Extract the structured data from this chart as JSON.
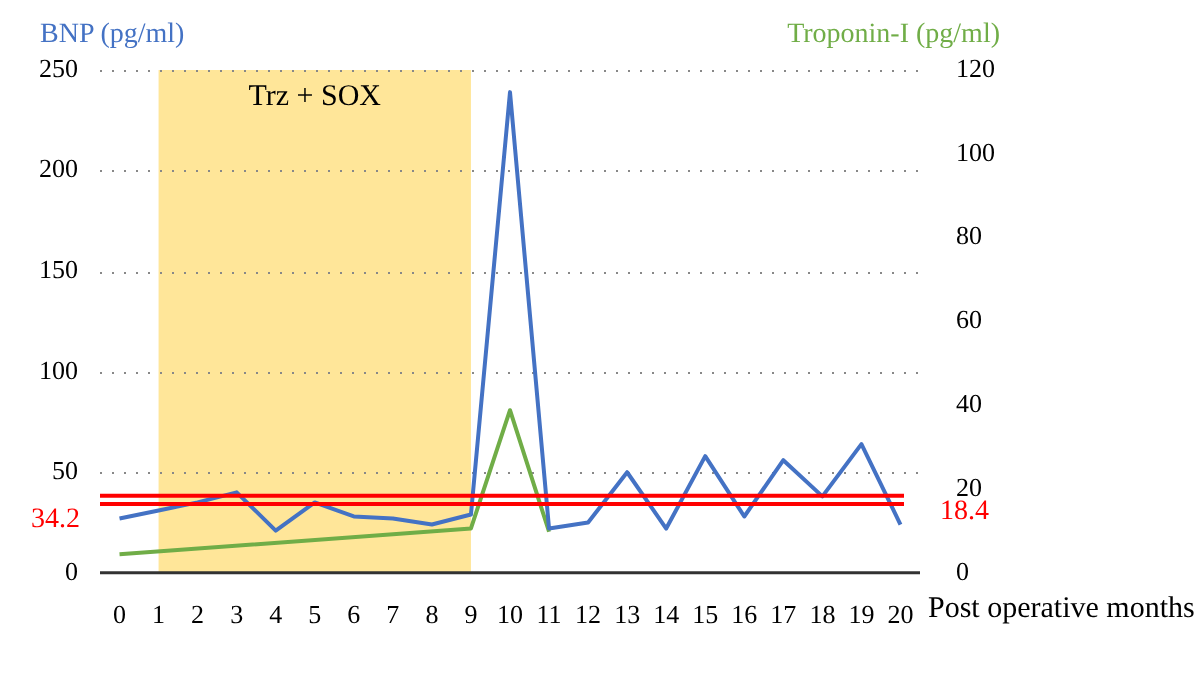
{
  "chart_data": {
    "type": "line",
    "ylabel": "BNP (pg/ml)",
    "y2label": "Troponin-I (pg/ml)",
    "xlabel": "Post operative months",
    "x": [
      0,
      1,
      2,
      3,
      4,
      5,
      6,
      7,
      8,
      9,
      10,
      11,
      12,
      13,
      14,
      15,
      16,
      17,
      18,
      19,
      20
    ],
    "xlim": [
      -0.5,
      20.5
    ],
    "xticks": [
      0,
      1,
      2,
      3,
      4,
      5,
      6,
      7,
      8,
      9,
      10,
      11,
      12,
      13,
      14,
      15,
      16,
      17,
      18,
      19,
      20
    ],
    "series": [
      {
        "color": "#4472c4",
        "values": [
          27,
          31,
          35,
          40,
          21,
          35,
          28,
          27,
          24,
          29,
          239,
          22,
          25,
          50,
          22,
          58,
          28,
          56,
          38,
          64,
          24
        ]
      },
      {
        "color": "#70ad47",
        "axis": "y2",
        "values": [
          4.4,
          null,
          null,
          null,
          null,
          null,
          null,
          null,
          null,
          10.6,
          38.8,
          9.8,
          null,
          null,
          null,
          null,
          null,
          null,
          null,
          null,
          null
        ]
      }
    ],
    "ylim": [
      0,
      250
    ],
    "yticks": [
      0,
      50,
      100,
      150,
      200,
      250
    ],
    "y2lim": [
      0,
      120
    ],
    "y2ticks": [
      0,
      20,
      40,
      60,
      80,
      100,
      120
    ],
    "ref_lines": [
      {
        "axis": "y",
        "value": 34.2,
        "label": "34.2",
        "color": "#ff0000"
      },
      {
        "axis": "y2",
        "value": 18.4,
        "label": "18.4",
        "color": "#ff0000"
      }
    ],
    "bands": [
      {
        "axis": "x",
        "from": 1,
        "to": 9,
        "label": "Trz + SOX",
        "color": "#ffe699"
      }
    ],
    "grid": "y",
    "legend": false,
    "marker": "none",
    "line_style": "solid"
  }
}
